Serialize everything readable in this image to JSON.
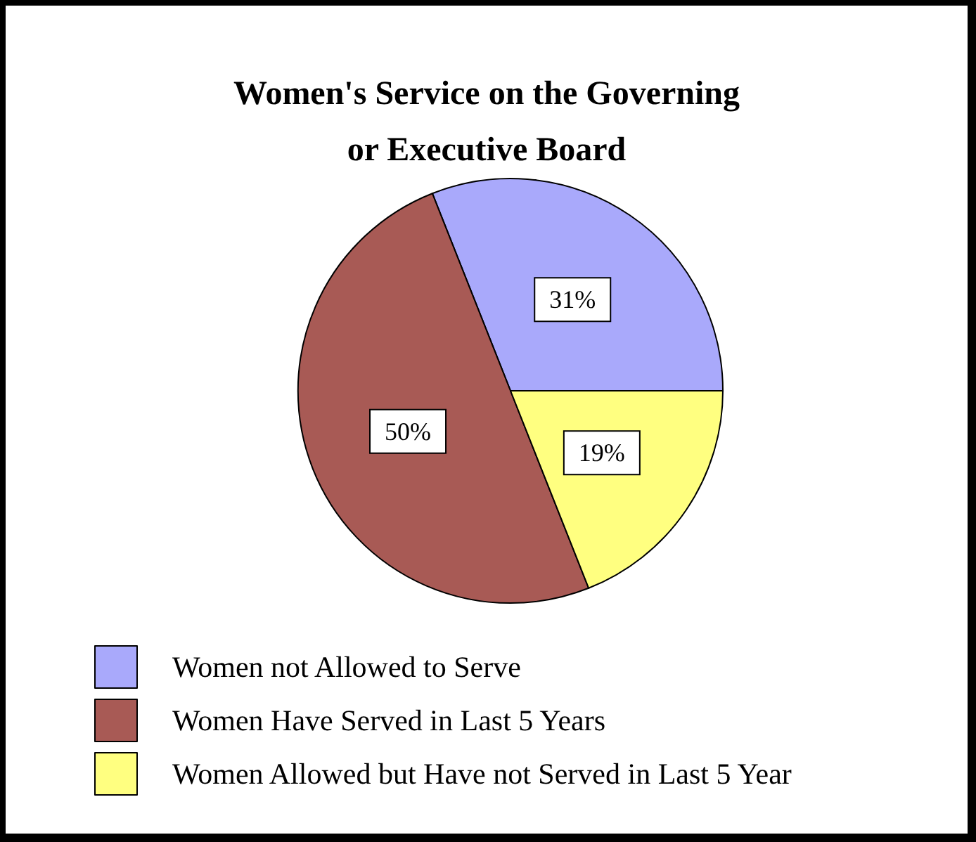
{
  "chart_data": {
    "type": "pie",
    "title": "Women's Service on the Governing\nor Executive Board",
    "categories": [
      "Women not Allowed to Serve",
      "Women Have Served in Last 5 Years",
      "Women Allowed but Have not Served in Last 5 Year"
    ],
    "values": [
      31,
      50,
      19
    ],
    "colors": [
      "#a9a9fb",
      "#a85a55",
      "#ffff80"
    ],
    "value_labels": [
      "31%",
      "50%",
      "19%"
    ],
    "legend": "bottom left"
  }
}
